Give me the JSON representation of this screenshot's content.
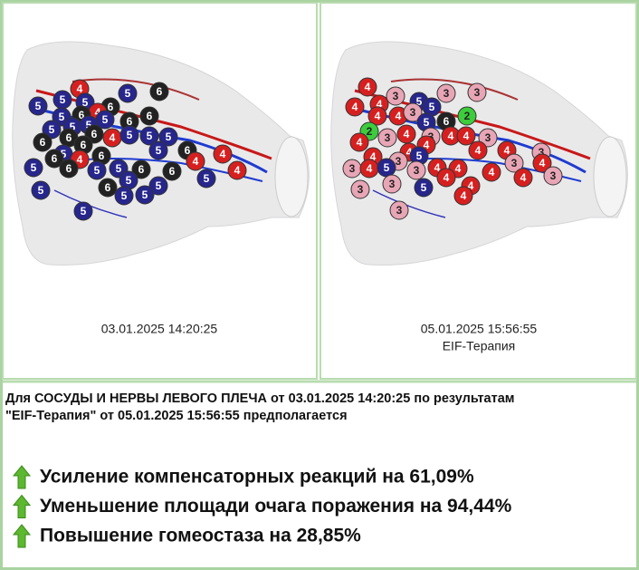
{
  "left_panel": {
    "caption": "03.01.2025 14:20:25",
    "markers": [
      {
        "label": "4",
        "color": "#d62020"
      },
      {
        "label": "5",
        "color": "#26268c"
      },
      {
        "label": "6",
        "color": "#222222"
      },
      {
        "label": "5",
        "color": "#26268c"
      },
      {
        "label": "5",
        "color": "#26268c"
      },
      {
        "label": "5",
        "color": "#26268c"
      },
      {
        "label": "6",
        "color": "#222222"
      },
      {
        "label": "4",
        "color": "#d62020"
      },
      {
        "label": "5",
        "color": "#26268c"
      },
      {
        "label": "6",
        "color": "#222222"
      },
      {
        "label": "5",
        "color": "#26268c"
      },
      {
        "label": "6",
        "color": "#222222"
      },
      {
        "label": "6",
        "color": "#222222"
      },
      {
        "label": "5",
        "color": "#26268c"
      },
      {
        "label": "5",
        "color": "#26268c"
      },
      {
        "label": "5",
        "color": "#26268c"
      },
      {
        "label": "6",
        "color": "#222222"
      },
      {
        "label": "4",
        "color": "#d62020"
      },
      {
        "label": "5",
        "color": "#26268c"
      },
      {
        "label": "5",
        "color": "#26268c"
      },
      {
        "label": "5",
        "color": "#26268c"
      },
      {
        "label": "6",
        "color": "#222222"
      },
      {
        "label": "6",
        "color": "#222222"
      },
      {
        "label": "6",
        "color": "#222222"
      },
      {
        "label": "5",
        "color": "#26268c"
      },
      {
        "label": "6",
        "color": "#222222"
      },
      {
        "label": "4",
        "color": "#d62020"
      },
      {
        "label": "6",
        "color": "#222222"
      },
      {
        "label": "5",
        "color": "#26268c"
      },
      {
        "label": "6",
        "color": "#222222"
      },
      {
        "label": "4",
        "color": "#d62020"
      },
      {
        "label": "4",
        "color": "#d62020"
      },
      {
        "label": "5",
        "color": "#26268c"
      },
      {
        "label": "6",
        "color": "#222222"
      },
      {
        "label": "5",
        "color": "#26268c"
      },
      {
        "label": "5",
        "color": "#26268c"
      },
      {
        "label": "6",
        "color": "#222222"
      },
      {
        "label": "6",
        "color": "#222222"
      },
      {
        "label": "4",
        "color": "#d62020"
      },
      {
        "label": "5",
        "color": "#26268c"
      },
      {
        "label": "5",
        "color": "#26268c"
      },
      {
        "label": "6",
        "color": "#222222"
      },
      {
        "label": "5",
        "color": "#26268c"
      },
      {
        "label": "5",
        "color": "#26268c"
      },
      {
        "label": "5",
        "color": "#26268c"
      },
      {
        "label": "5",
        "color": "#26268c"
      },
      {
        "label": "5",
        "color": "#26268c"
      }
    ]
  },
  "right_panel": {
    "caption": "05.01.2025 15:56:55",
    "subcaption": "EIF-Терапия",
    "markers": [
      {
        "label": "4",
        "color": "#d62020"
      },
      {
        "label": "3",
        "color": "#e8a5b5"
      },
      {
        "label": "3",
        "color": "#e8a5b5"
      },
      {
        "label": "4",
        "color": "#d62020"
      },
      {
        "label": "4",
        "color": "#d62020"
      },
      {
        "label": "3",
        "color": "#e8a5b5"
      },
      {
        "label": "5",
        "color": "#26268c"
      },
      {
        "label": "5",
        "color": "#26268c"
      },
      {
        "label": "2",
        "color": "#3ccc3c"
      },
      {
        "label": "4",
        "color": "#d62020"
      },
      {
        "label": "4",
        "color": "#d62020"
      },
      {
        "label": "3",
        "color": "#e8a5b5"
      },
      {
        "label": "5",
        "color": "#26268c"
      },
      {
        "label": "6",
        "color": "#222222"
      },
      {
        "label": "2",
        "color": "#3ccc3c"
      },
      {
        "label": "4",
        "color": "#d62020"
      },
      {
        "label": "3",
        "color": "#e8a5b5"
      },
      {
        "label": "4",
        "color": "#d62020"
      },
      {
        "label": "3",
        "color": "#e8a5b5"
      },
      {
        "label": "4",
        "color": "#d62020"
      },
      {
        "label": "4",
        "color": "#d62020"
      },
      {
        "label": "3",
        "color": "#e8a5b5"
      },
      {
        "label": "4",
        "color": "#d62020"
      },
      {
        "label": "4",
        "color": "#d62020"
      },
      {
        "label": "4",
        "color": "#d62020"
      },
      {
        "label": "4",
        "color": "#d62020"
      },
      {
        "label": "3",
        "color": "#e8a5b5"
      },
      {
        "label": "4",
        "color": "#d62020"
      },
      {
        "label": "3",
        "color": "#e8a5b5"
      },
      {
        "label": "5",
        "color": "#26268c"
      },
      {
        "label": "3",
        "color": "#e8a5b5"
      },
      {
        "label": "4",
        "color": "#d62020"
      },
      {
        "label": "3",
        "color": "#e8a5b5"
      },
      {
        "label": "4",
        "color": "#d62020"
      },
      {
        "label": "5",
        "color": "#26268c"
      },
      {
        "label": "3",
        "color": "#e8a5b5"
      },
      {
        "label": "4",
        "color": "#d62020"
      },
      {
        "label": "4",
        "color": "#d62020"
      },
      {
        "label": "4",
        "color": "#d62020"
      },
      {
        "label": "4",
        "color": "#d62020"
      },
      {
        "label": "3",
        "color": "#e8a5b5"
      },
      {
        "label": "3",
        "color": "#e8a5b5"
      },
      {
        "label": "3",
        "color": "#e8a5b5"
      },
      {
        "label": "5",
        "color": "#26268c"
      },
      {
        "label": "4",
        "color": "#d62020"
      },
      {
        "label": "4",
        "color": "#d62020"
      },
      {
        "label": "4",
        "color": "#d62020"
      },
      {
        "label": "3",
        "color": "#e8a5b5"
      }
    ]
  },
  "summary": {
    "line1": "Для СОСУДЫ И НЕРВЫ ЛЕВОГО ПЛЕЧА от 03.01.2025 14:20:25 по результатам",
    "line2": "\"EIF-Терапия\" от 05.01.2025 15:56:55 предполагается",
    "items": [
      "Усиление компенсаторных реакций на 61,09%",
      "Уменьшение площади очага поражения на 94,44%",
      "Повышение гомеостаза на 28,85%"
    ]
  }
}
